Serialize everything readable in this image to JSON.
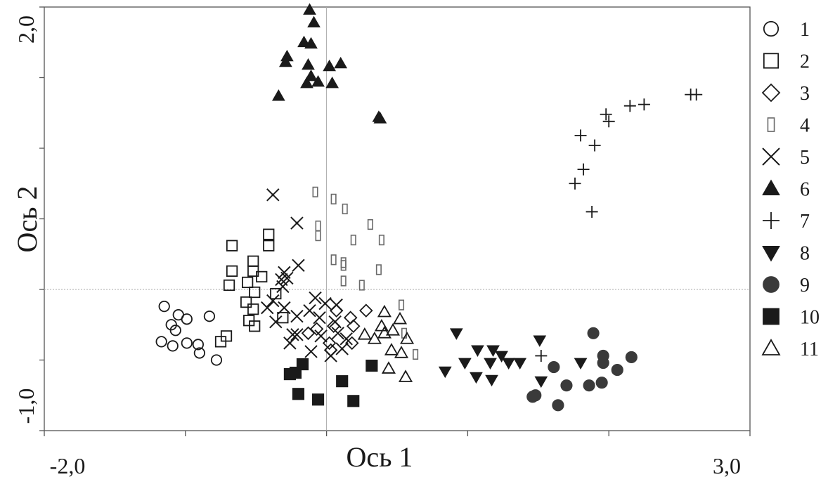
{
  "chart_data": {
    "type": "scatter",
    "title": "",
    "xlabel": "Ось 1",
    "ylabel": "Ось 2",
    "xlim": [
      -2.0,
      3.0
    ],
    "ylim": [
      -1.0,
      2.0
    ],
    "x_tick_labels": [
      "-2,0",
      "3,0"
    ],
    "y_tick_labels": [
      "2,0",
      "-1,0"
    ],
    "reference_lines": {
      "x": 0.0,
      "y": 0.0
    },
    "grid": false,
    "legend_position": "right",
    "series": [
      {
        "name": "1",
        "marker": "circle-open",
        "color": "#1a1a1a",
        "points": [
          [
            -1.15,
            -0.12
          ],
          [
            -1.1,
            -0.25
          ],
          [
            -1.05,
            -0.18
          ],
          [
            -0.99,
            -0.21
          ],
          [
            -0.83,
            -0.19
          ],
          [
            -1.07,
            -0.29
          ],
          [
            -1.17,
            -0.37
          ],
          [
            -1.09,
            -0.4
          ],
          [
            -0.99,
            -0.38
          ],
          [
            -0.91,
            -0.39
          ],
          [
            -0.9,
            -0.45
          ],
          [
            -0.78,
            -0.5
          ]
        ]
      },
      {
        "name": "2",
        "marker": "square-open",
        "color": "#1a1a1a",
        "points": [
          [
            -0.67,
            0.31
          ],
          [
            -0.41,
            0.39
          ],
          [
            -0.41,
            0.31
          ],
          [
            -0.52,
            0.2
          ],
          [
            -0.67,
            0.13
          ],
          [
            -0.52,
            0.13
          ],
          [
            -0.46,
            0.09
          ],
          [
            -0.69,
            0.03
          ],
          [
            -0.56,
            0.05
          ],
          [
            -0.51,
            -0.02
          ],
          [
            -0.36,
            -0.03
          ],
          [
            -0.57,
            -0.09
          ],
          [
            -0.52,
            -0.14
          ],
          [
            -0.31,
            -0.2
          ],
          [
            -0.55,
            -0.22
          ],
          [
            -0.51,
            -0.26
          ],
          [
            -0.71,
            -0.33
          ],
          [
            -0.75,
            -0.37
          ]
        ]
      },
      {
        "name": "4",
        "marker": "narrow-rect-open",
        "color": "#6a6a6a",
        "points": [
          [
            -0.08,
            0.69
          ],
          [
            0.05,
            0.64
          ],
          [
            0.13,
            0.57
          ],
          [
            -0.06,
            0.45
          ],
          [
            0.31,
            0.46
          ],
          [
            -0.06,
            0.38
          ],
          [
            0.19,
            0.35
          ],
          [
            0.39,
            0.35
          ],
          [
            0.05,
            0.21
          ],
          [
            0.12,
            0.19
          ],
          [
            0.12,
            0.17
          ],
          [
            0.37,
            0.14
          ],
          [
            0.12,
            0.06
          ],
          [
            0.25,
            0.03
          ],
          [
            0.53,
            -0.11
          ],
          [
            0.55,
            -0.31
          ],
          [
            0.63,
            -0.46
          ]
        ]
      },
      {
        "name": "5",
        "marker": "x",
        "color": "#1a1a1a",
        "points": [
          [
            -0.38,
            0.67
          ],
          [
            -0.21,
            0.47
          ],
          [
            -0.3,
            0.12
          ],
          [
            -0.2,
            0.17
          ],
          [
            -0.32,
            0.07
          ],
          [
            -0.28,
            0.08
          ],
          [
            -0.31,
            0.02
          ],
          [
            -0.38,
            -0.08
          ],
          [
            -0.42,
            -0.13
          ],
          [
            -0.3,
            -0.13
          ],
          [
            -0.21,
            -0.19
          ],
          [
            -0.08,
            -0.06
          ],
          [
            -0.01,
            -0.1
          ],
          [
            -0.12,
            -0.15
          ],
          [
            0.07,
            -0.11
          ],
          [
            -0.05,
            -0.2
          ],
          [
            -0.21,
            -0.32
          ],
          [
            -0.36,
            -0.23
          ],
          [
            -0.24,
            -0.32
          ],
          [
            0.08,
            -0.31
          ],
          [
            0.06,
            -0.23
          ],
          [
            -0.04,
            -0.33
          ],
          [
            0.14,
            -0.35
          ],
          [
            -0.26,
            -0.38
          ],
          [
            -0.11,
            -0.44
          ],
          [
            0.11,
            -0.42
          ],
          [
            0.03,
            -0.47
          ]
        ]
      },
      {
        "name": "3",
        "marker": "diamond-open",
        "color": "#1a1a1a",
        "points": [
          [
            0.07,
            -0.15
          ],
          [
            0.17,
            -0.2
          ],
          [
            0.28,
            -0.15
          ],
          [
            0.19,
            -0.26
          ],
          [
            0.05,
            -0.26
          ],
          [
            -0.07,
            -0.28
          ],
          [
            -0.13,
            -0.31
          ],
          [
            0.02,
            -0.38
          ],
          [
            0.18,
            -0.38
          ],
          [
            0.03,
            -0.43
          ]
        ]
      },
      {
        "name": "11",
        "marker": "triangle-open",
        "color": "#1a1a1a",
        "points": [
          [
            0.41,
            -0.16
          ],
          [
            0.52,
            -0.21
          ],
          [
            0.39,
            -0.26
          ],
          [
            0.47,
            -0.29
          ],
          [
            0.27,
            -0.32
          ],
          [
            0.34,
            -0.35
          ],
          [
            0.41,
            -0.31
          ],
          [
            0.57,
            -0.35
          ],
          [
            0.46,
            -0.43
          ],
          [
            0.53,
            -0.45
          ],
          [
            0.44,
            -0.56
          ],
          [
            0.56,
            -0.62
          ]
        ]
      },
      {
        "name": "6",
        "marker": "triangle-filled",
        "color": "#1a1a1a",
        "points": [
          [
            -0.12,
            1.98
          ],
          [
            -0.09,
            1.89
          ],
          [
            -0.16,
            1.75
          ],
          [
            -0.11,
            1.74
          ],
          [
            -0.28,
            1.65
          ],
          [
            -0.29,
            1.61
          ],
          [
            -0.13,
            1.59
          ],
          [
            0.1,
            1.6
          ],
          [
            0.02,
            1.58
          ],
          [
            -0.11,
            1.51
          ],
          [
            -0.06,
            1.47
          ],
          [
            0.04,
            1.46
          ],
          [
            -0.14,
            1.46
          ],
          [
            -0.34,
            1.37
          ],
          [
            0.37,
            1.22
          ],
          [
            0.38,
            1.21
          ]
        ]
      },
      {
        "name": "7",
        "marker": "plus",
        "color": "#1a1a1a",
        "points": [
          [
            2.62,
            1.38
          ],
          [
            2.58,
            1.38
          ],
          [
            2.25,
            1.31
          ],
          [
            2.15,
            1.3
          ],
          [
            1.98,
            1.24
          ],
          [
            2.0,
            1.19
          ],
          [
            1.8,
            1.09
          ],
          [
            1.9,
            1.02
          ],
          [
            1.82,
            0.85
          ],
          [
            1.76,
            0.75
          ],
          [
            1.88,
            0.55
          ],
          [
            1.52,
            -0.47
          ]
        ]
      },
      {
        "name": "8",
        "marker": "triangle-down-filled",
        "color": "#1a1a1a",
        "points": [
          [
            0.92,
            -0.31
          ],
          [
            1.07,
            -0.43
          ],
          [
            1.18,
            -0.43
          ],
          [
            1.24,
            -0.47
          ],
          [
            0.98,
            -0.52
          ],
          [
            1.16,
            -0.52
          ],
          [
            1.29,
            -0.52
          ],
          [
            1.37,
            -0.52
          ],
          [
            1.51,
            -0.36
          ],
          [
            1.8,
            -0.52
          ],
          [
            0.84,
            -0.58
          ],
          [
            1.06,
            -0.62
          ],
          [
            1.17,
            -0.64
          ],
          [
            1.52,
            -0.65
          ]
        ]
      },
      {
        "name": "9",
        "marker": "circle-filled",
        "color": "#3a3a3a",
        "points": [
          [
            1.89,
            -0.31
          ],
          [
            1.96,
            -0.47
          ],
          [
            2.16,
            -0.48
          ],
          [
            1.96,
            -0.52
          ],
          [
            1.61,
            -0.55
          ],
          [
            2.06,
            -0.57
          ],
          [
            1.95,
            -0.66
          ],
          [
            1.86,
            -0.68
          ],
          [
            1.7,
            -0.68
          ],
          [
            1.48,
            -0.75
          ],
          [
            1.46,
            -0.76
          ],
          [
            1.64,
            -0.82
          ]
        ]
      },
      {
        "name": "10",
        "marker": "square-filled",
        "color": "#1a1a1a",
        "points": [
          [
            -0.17,
            -0.53
          ],
          [
            -0.22,
            -0.59
          ],
          [
            -0.26,
            -0.6
          ],
          [
            0.32,
            -0.54
          ],
          [
            0.11,
            -0.65
          ],
          [
            -0.2,
            -0.74
          ],
          [
            -0.06,
            -0.78
          ],
          [
            0.19,
            -0.79
          ]
        ]
      }
    ],
    "legend": [
      "1",
      "2",
      "3",
      "4",
      "5",
      "6",
      "7",
      "8",
      "9",
      "10",
      "11"
    ]
  }
}
